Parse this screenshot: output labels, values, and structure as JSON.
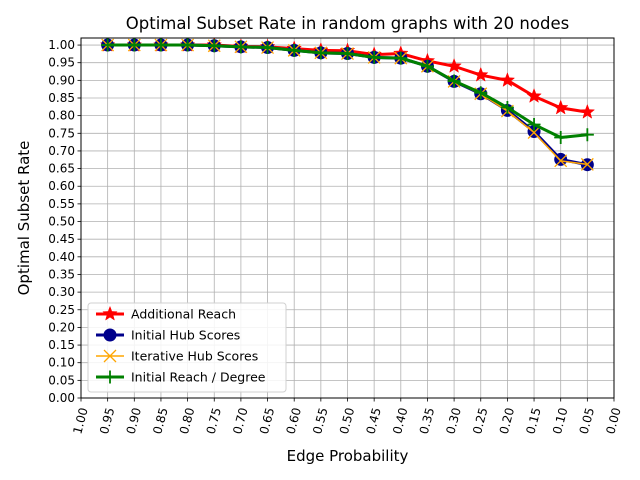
{
  "chart_data": {
    "type": "line",
    "title": "Optimal Subset Rate in random graphs with 20 nodes",
    "xlabel": "Edge Probability",
    "ylabel": "Optimal Subset Rate",
    "xlim": [
      1.0,
      0.0
    ],
    "ylim": [
      0.0,
      1.02
    ],
    "grid": true,
    "legend_position": "lower-left",
    "x_ticks": [
      "1.00",
      "0.95",
      "0.90",
      "0.85",
      "0.80",
      "0.75",
      "0.70",
      "0.65",
      "0.60",
      "0.55",
      "0.50",
      "0.45",
      "0.40",
      "0.35",
      "0.30",
      "0.25",
      "0.20",
      "0.15",
      "0.10",
      "0.05",
      "0.00"
    ],
    "y_ticks": [
      "0.00",
      "0.05",
      "0.10",
      "0.15",
      "0.20",
      "0.25",
      "0.30",
      "0.35",
      "0.40",
      "0.45",
      "0.50",
      "0.55",
      "0.60",
      "0.65",
      "0.70",
      "0.75",
      "0.80",
      "0.85",
      "0.90",
      "0.95",
      "1.00"
    ],
    "x": [
      0.95,
      0.9,
      0.85,
      0.8,
      0.75,
      0.7,
      0.65,
      0.6,
      0.55,
      0.5,
      0.45,
      0.4,
      0.35,
      0.3,
      0.25,
      0.2,
      0.15,
      0.1,
      0.05
    ],
    "series": [
      {
        "name": "Additional Reach",
        "color": "#ff0000",
        "marker": "star",
        "values": [
          1.0,
          1.0,
          1.0,
          1.0,
          1.0,
          0.996,
          0.995,
          0.99,
          0.985,
          0.984,
          0.973,
          0.976,
          0.955,
          0.94,
          0.915,
          0.9,
          0.855,
          0.822,
          0.81
        ]
      },
      {
        "name": "Initial Hub Scores",
        "color": "#00008b",
        "marker": "circle",
        "values": [
          1.0,
          1.0,
          1.0,
          1.0,
          0.998,
          0.995,
          0.993,
          0.985,
          0.978,
          0.976,
          0.965,
          0.963,
          0.94,
          0.897,
          0.862,
          0.815,
          0.755,
          0.676,
          0.661
        ]
      },
      {
        "name": "Iterative Hub Scores",
        "color": "#ffa500",
        "marker": "x",
        "values": [
          1.0,
          1.0,
          1.0,
          1.0,
          0.998,
          0.995,
          0.993,
          0.985,
          0.978,
          0.976,
          0.965,
          0.963,
          0.94,
          0.897,
          0.862,
          0.813,
          0.752,
          0.672,
          0.662
        ]
      },
      {
        "name": "Initial Reach / Degree",
        "color": "#008000",
        "marker": "plus",
        "values": [
          1.0,
          1.0,
          1.0,
          1.0,
          0.998,
          0.995,
          0.993,
          0.985,
          0.978,
          0.976,
          0.965,
          0.963,
          0.94,
          0.898,
          0.865,
          0.823,
          0.775,
          0.738,
          0.746
        ]
      }
    ]
  }
}
